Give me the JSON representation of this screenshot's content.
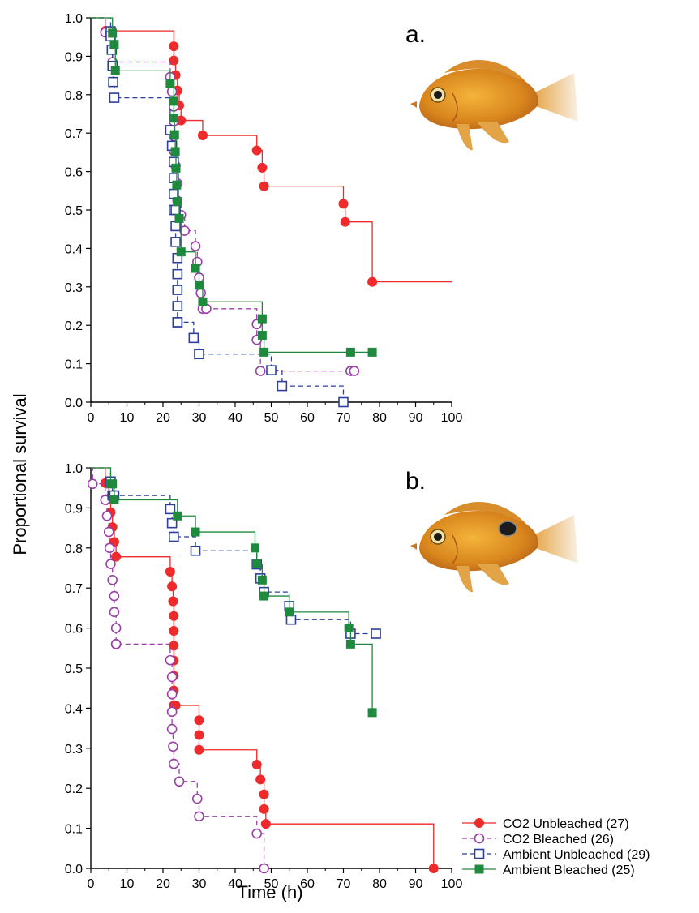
{
  "ylabel": "Proportional survival",
  "xlabel": "Time (h)",
  "colors": {
    "co2_unbleached": "#ee2a2a",
    "co2_bleached": "#9b3fa8",
    "ambient_unbleached": "#2e3f9b",
    "ambient_bleached": "#1f8a3e"
  },
  "legend": [
    {
      "key": "co2_unbleached",
      "label": "CO2 Unbleached (27)",
      "marker": "filled-circle",
      "line": "solid"
    },
    {
      "key": "co2_bleached",
      "label": "CO2 Bleached (26)",
      "marker": "open-circle",
      "line": "dashed"
    },
    {
      "key": "ambient_unbleached",
      "label": "Ambient Unbleached (29)",
      "marker": "open-square",
      "line": "dashed"
    },
    {
      "key": "ambient_bleached",
      "label": "Ambient Bleached (25)",
      "marker": "filled-square",
      "line": "solid"
    }
  ],
  "chart_data": [
    {
      "type": "line",
      "panel_label": "a.",
      "image": "fish-photo",
      "xlim": [
        0,
        100
      ],
      "ylim": [
        0,
        1.0
      ],
      "x_ticks": [
        "0",
        "10",
        "20",
        "30",
        "40",
        "50",
        "60",
        "70",
        "80",
        "90",
        "100"
      ],
      "y_ticks": [
        "0.0",
        "0.1",
        "0.2",
        "0.3",
        "0.4",
        "0.5",
        "0.6",
        "0.7",
        "0.8",
        "0.9",
        "1.0"
      ],
      "series": [
        {
          "key": "co2_unbleached",
          "style": "step",
          "end_x": 100,
          "x": [
            0,
            4,
            23,
            23,
            23.5,
            24,
            24.5,
            25,
            31,
            46,
            47.5,
            48,
            70,
            70.5,
            78
          ],
          "y": [
            1.0,
            0.966,
            0.926,
            0.889,
            0.851,
            0.811,
            0.772,
            0.733,
            0.694,
            0.655,
            0.61,
            0.562,
            0.516,
            0.469,
            0.313
          ]
        },
        {
          "key": "co2_bleached",
          "style": "step",
          "end_x": 73,
          "x": [
            0,
            4,
            6,
            22,
            22.5,
            23,
            23,
            23,
            23,
            23.5,
            24,
            24,
            25,
            26,
            29,
            29.5,
            30,
            30.5,
            31,
            32,
            46,
            46,
            47,
            72,
            73
          ],
          "y": [
            1.0,
            0.962,
            0.885,
            0.846,
            0.808,
            0.769,
            0.731,
            0.692,
            0.654,
            0.615,
            0.569,
            0.524,
            0.487,
            0.446,
            0.406,
            0.365,
            0.324,
            0.284,
            0.243,
            0.243,
            0.203,
            0.162,
            0.081,
            0.081,
            0.081
          ]
        },
        {
          "key": "ambient_unbleached",
          "style": "step",
          "end_x": 70,
          "x": [
            0,
            5.5,
            5.5,
            5.8,
            6,
            6.2,
            6.5,
            22,
            22.5,
            23,
            23,
            23,
            23,
            23.5,
            23.5,
            23.5,
            24,
            24,
            24,
            24,
            24,
            24,
            24,
            28.5,
            30,
            50,
            53,
            70
          ],
          "y": [
            1.0,
            0.965,
            0.952,
            0.917,
            0.875,
            0.833,
            0.792,
            0.708,
            0.667,
            0.625,
            0.583,
            0.542,
            0.5,
            0.5,
            0.458,
            0.417,
            0.375,
            0.333,
            0.292,
            0.25,
            0.208,
            0.208,
            0.208,
            0.167,
            0.125,
            0.083,
            0.042,
            0.0
          ]
        },
        {
          "key": "ambient_bleached",
          "style": "step",
          "end_x": 78,
          "x": [
            0,
            6,
            6.5,
            6.8,
            22,
            23,
            23,
            23.2,
            23.4,
            23.6,
            23.8,
            24,
            24.5,
            25,
            29,
            30,
            31,
            47.5,
            47.5,
            48,
            72,
            78
          ],
          "y": [
            1.0,
            0.96,
            0.931,
            0.862,
            0.828,
            0.783,
            0.739,
            0.696,
            0.652,
            0.609,
            0.565,
            0.522,
            0.478,
            0.391,
            0.348,
            0.304,
            0.261,
            0.217,
            0.174,
            0.13,
            0.13,
            0.13
          ]
        }
      ]
    },
    {
      "type": "line",
      "panel_label": "b.",
      "image": "fish-photo",
      "xlim": [
        0,
        100
      ],
      "ylim": [
        0,
        1.0
      ],
      "x_ticks": [
        "0",
        "10",
        "20",
        "30",
        "40",
        "50",
        "60",
        "70",
        "80",
        "90",
        "100"
      ],
      "y_ticks": [
        "0.0",
        "0.1",
        "0.2",
        "0.3",
        "0.4",
        "0.5",
        "0.6",
        "0.7",
        "0.8",
        "0.9",
        "1.0"
      ],
      "series": [
        {
          "key": "co2_unbleached",
          "style": "step",
          "end_x": 95,
          "x": [
            0,
            4,
            5,
            5.5,
            6,
            6.5,
            7,
            22,
            22.5,
            22.8,
            23,
            23,
            23,
            23,
            23,
            23,
            23,
            23.5,
            30,
            30,
            30,
            46,
            47,
            48,
            48,
            48.5,
            95
          ],
          "y": [
            1.0,
            0.962,
            0.923,
            0.889,
            0.852,
            0.815,
            0.778,
            0.741,
            0.704,
            0.667,
            0.63,
            0.593,
            0.556,
            0.519,
            0.481,
            0.444,
            0.407,
            0.407,
            0.37,
            0.333,
            0.296,
            0.259,
            0.222,
            0.185,
            0.148,
            0.111,
            0.0
          ]
        },
        {
          "key": "co2_bleached",
          "style": "step",
          "end_x": 48,
          "x": [
            0,
            0.5,
            4,
            4.5,
            5,
            5.2,
            5.5,
            6,
            6.5,
            6.5,
            7,
            7,
            7,
            22,
            22.5,
            22.5,
            22.5,
            22.5,
            22.8,
            23,
            23,
            24.5,
            29.5,
            30,
            46,
            48
          ],
          "y": [
            1.0,
            0.96,
            0.92,
            0.88,
            0.84,
            0.8,
            0.76,
            0.72,
            0.68,
            0.64,
            0.6,
            0.56,
            0.56,
            0.52,
            0.478,
            0.435,
            0.391,
            0.348,
            0.304,
            0.261,
            0.261,
            0.217,
            0.174,
            0.13,
            0.087,
            0.0
          ]
        },
        {
          "key": "ambient_unbleached",
          "style": "step",
          "end_x": 79,
          "x": [
            0,
            5.5,
            6,
            6.5,
            22,
            22.5,
            23,
            29,
            46,
            47,
            48,
            55,
            55.5,
            72,
            79
          ],
          "y": [
            1.0,
            0.966,
            0.931,
            0.931,
            0.897,
            0.862,
            0.828,
            0.793,
            0.759,
            0.724,
            0.69,
            0.655,
            0.621,
            0.586,
            0.586
          ]
        },
        {
          "key": "ambient_bleached",
          "style": "step",
          "end_x": 78,
          "x": [
            0,
            5.5,
            6,
            6.5,
            24,
            29,
            45.5,
            46,
            47.5,
            48,
            55,
            71.5,
            72,
            78
          ],
          "y": [
            1.0,
            0.96,
            0.96,
            0.92,
            0.88,
            0.84,
            0.8,
            0.76,
            0.72,
            0.68,
            0.64,
            0.6,
            0.56,
            0.389
          ]
        }
      ]
    }
  ]
}
